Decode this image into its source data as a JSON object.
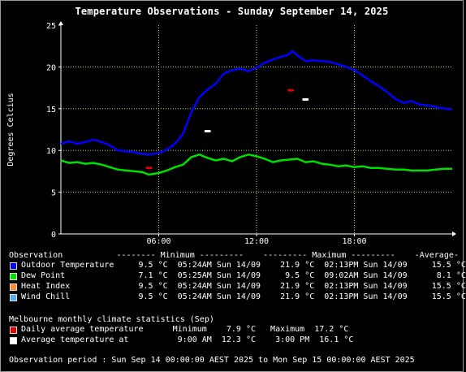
{
  "chart_data": {
    "type": "line",
    "title": "Temperature Observations - Sunday September 14, 2025",
    "ylabel": "Degrees Celcius",
    "xlabel": "",
    "ylim": [
      0,
      25
    ],
    "xlim_hours": [
      0,
      24
    ],
    "yticks": [
      "0",
      "5",
      "10",
      "15",
      "20",
      "25"
    ],
    "xticks": [
      {
        "label": "06:00",
        "hour": 6
      },
      {
        "label": "12:00",
        "hour": 12
      },
      {
        "label": "18:00",
        "hour": 18
      }
    ],
    "grid": true,
    "series": [
      {
        "name": "Outdoor Temperature",
        "color": "#0000ff",
        "x": [
          0,
          0.5,
          1,
          1.5,
          2,
          2.5,
          3,
          3.5,
          4,
          4.5,
          5,
          5.4,
          6,
          6.5,
          7,
          7.5,
          8,
          8.5,
          9,
          9.5,
          10,
          10.5,
          11,
          11.5,
          12,
          12.5,
          13,
          13.5,
          14,
          14.2,
          14.5,
          15,
          15.5,
          16,
          16.5,
          17,
          17.5,
          18,
          18.5,
          19,
          19.5,
          20,
          20.5,
          21,
          21.5,
          22,
          22.5,
          23,
          23.5,
          24
        ],
        "y": [
          10.8,
          11.1,
          10.8,
          11.0,
          11.3,
          11.0,
          10.6,
          10.0,
          9.9,
          9.8,
          9.6,
          9.5,
          9.7,
          10.1,
          10.8,
          12.0,
          14.6,
          16.4,
          17.3,
          18.0,
          19.2,
          19.6,
          19.8,
          19.5,
          19.9,
          20.5,
          20.9,
          21.2,
          21.5,
          21.9,
          21.4,
          20.7,
          20.8,
          20.7,
          20.6,
          20.3,
          20.0,
          19.6,
          19.0,
          18.3,
          17.7,
          17.0,
          16.2,
          15.7,
          15.9,
          15.5,
          15.4,
          15.2,
          15.0,
          14.9
        ]
      },
      {
        "name": "Dew Point",
        "color": "#00e000",
        "x": [
          0,
          0.5,
          1,
          1.5,
          2,
          2.5,
          3,
          3.5,
          4,
          4.5,
          5,
          5.4,
          6,
          6.5,
          7,
          7.5,
          8,
          8.5,
          9,
          9.5,
          10,
          10.5,
          11,
          11.5,
          12,
          12.5,
          13,
          13.5,
          14,
          14.5,
          15,
          15.5,
          16,
          16.5,
          17,
          17.5,
          18,
          18.5,
          19,
          19.5,
          20,
          20.5,
          21,
          21.5,
          22,
          22.5,
          23,
          23.5,
          24
        ],
        "y": [
          8.8,
          8.5,
          8.6,
          8.4,
          8.5,
          8.3,
          8.0,
          7.7,
          7.6,
          7.5,
          7.4,
          7.1,
          7.3,
          7.6,
          8.0,
          8.3,
          9.2,
          9.5,
          9.1,
          8.8,
          9.0,
          8.7,
          9.2,
          9.5,
          9.3,
          9.0,
          8.6,
          8.8,
          8.9,
          9.0,
          8.6,
          8.7,
          8.4,
          8.3,
          8.1,
          8.2,
          8.0,
          8.1,
          7.9,
          7.9,
          7.8,
          7.7,
          7.7,
          7.6,
          7.6,
          7.6,
          7.7,
          7.8,
          7.8
        ]
      }
    ],
    "markers": [
      {
        "label": "Daily average temperature minimum",
        "color": "#e00000",
        "hour": 5.4,
        "value": 7.9
      },
      {
        "label": "Daily average temperature maximum",
        "color": "#e00000",
        "hour": 14.1,
        "value": 17.2
      },
      {
        "label": "Average temperature at 9:00 AM",
        "color": "#ffffff",
        "hour": 9.0,
        "value": 12.3
      },
      {
        "label": "Average temperature at 3:00 PM",
        "color": "#ffffff",
        "hour": 15.0,
        "value": 16.1
      }
    ],
    "colors": {
      "background": "#000000",
      "grid": "#b8d86a",
      "axis": "#ffffff",
      "frame": "#9a9a9a"
    }
  },
  "legend": {
    "header": "Observation           -------- Minimum ---------    --------- Maximum ---------    -Average-",
    "rows": [
      {
        "color": "#0000ff",
        "text": "Outdoor Temperature     9.5 °C  05:24AM Sun 14/09    21.9 °C  02:13PM Sun 14/09     15.5 °C"
      },
      {
        "color": "#00e000",
        "text": "Dew Point               7.1 °C  05:25AM Sun 14/09     9.5 °C  09:02AM Sun 14/09      8.1 °C"
      },
      {
        "color": "#ff8c30",
        "text": "Heat Index              9.5 °C  05:24AM Sun 14/09    21.9 °C  02:13PM Sun 14/09     15.5 °C"
      },
      {
        "color": "#55aaee",
        "text": "Wind Chill              9.5 °C  05:24AM Sun 14/09    21.9 °C  02:13PM Sun 14/09     15.5 °C"
      }
    ]
  },
  "climate": {
    "header": "Melbourne monthly climate statistics (Sep)",
    "rows": [
      {
        "color": "#e00000",
        "text": "Daily average temperature      Minimum    7.9 °C   Maximum  17.2 °C"
      },
      {
        "color": "#ffffff",
        "text": "Average temperature at          9:00 AM  12.3 °C    3:00 PM  16.1 °C"
      }
    ]
  },
  "period": "Observation period : Sun Sep 14 00:00:00 AEST 2025 to Mon Sep 15 00:00:00 AEST 2025"
}
